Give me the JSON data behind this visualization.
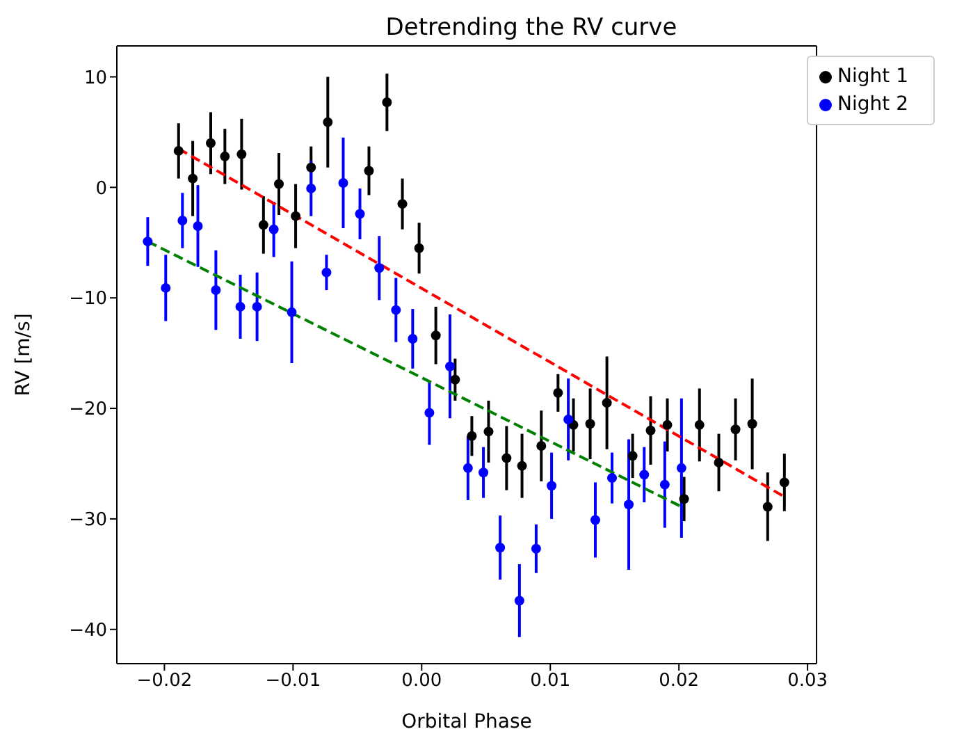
{
  "chart_data": {
    "type": "scatter",
    "title": "Detrending the RV curve",
    "xlabel": "Orbital Phase",
    "ylabel": "RV [m/s]",
    "xlim": [
      -0.0237,
      0.0307
    ],
    "ylim": [
      -43.1,
      12.8
    ],
    "xticks": [
      {
        "value": -0.02,
        "label": "−0.02"
      },
      {
        "value": -0.01,
        "label": "−0.01"
      },
      {
        "value": 0,
        "label": "0.00"
      },
      {
        "value": 0.01,
        "label": "0.01"
      },
      {
        "value": 0.02,
        "label": "0.02"
      },
      {
        "value": 0.03,
        "label": "0.03"
      }
    ],
    "yticks": [
      {
        "value": -40,
        "label": "−40"
      },
      {
        "value": -30,
        "label": "−30"
      },
      {
        "value": -20,
        "label": "−20"
      },
      {
        "value": -10,
        "label": "−10"
      },
      0,
      10
    ],
    "legend": "top right",
    "marker": "circle",
    "series": [
      {
        "name": "Night 1",
        "type": "scatter",
        "color": "#000000",
        "x": [
          -0.0189,
          -0.0178,
          -0.0164,
          -0.0153,
          -0.014,
          -0.0123,
          -0.0111,
          -0.0098,
          -0.0086,
          -0.0073,
          -0.0041,
          -0.0027,
          -0.0015,
          -0.0002,
          0.0011,
          0.0026,
          0.0039,
          0.0052,
          0.0066,
          0.0078,
          0.0093,
          0.0106,
          0.0118,
          0.0131,
          0.0144,
          0.0164,
          0.0178,
          0.0191,
          0.0204,
          0.0216,
          0.0231,
          0.0244,
          0.0257,
          0.0269,
          0.0282
        ],
        "values": [
          3.3,
          0.8,
          4.0,
          2.8,
          3.0,
          -3.4,
          0.3,
          -2.6,
          1.8,
          5.9,
          1.5,
          7.7,
          -1.5,
          -5.5,
          -13.4,
          -17.4,
          -22.5,
          -22.1,
          -24.5,
          -25.2,
          -23.4,
          -18.6,
          -21.5,
          -21.4,
          -19.5,
          -24.3,
          -22.0,
          -21.5,
          -28.2,
          -21.5,
          -24.9,
          -21.9,
          -21.4,
          -28.9,
          -26.7
        ],
        "errors": [
          2.5,
          3.4,
          2.8,
          2.5,
          3.2,
          2.6,
          2.8,
          2.9,
          1.9,
          4.1,
          2.2,
          2.6,
          2.3,
          2.3,
          2.6,
          1.9,
          1.8,
          2.8,
          2.9,
          2.9,
          3.2,
          1.7,
          2.4,
          3.2,
          4.2,
          2.0,
          3.1,
          2.4,
          2.0,
          3.3,
          2.6,
          2.8,
          4.1,
          3.1,
          2.6
        ]
      },
      {
        "name": "Night 2",
        "type": "scatter",
        "color": "#0000ff",
        "x": [
          -0.0213,
          -0.0199,
          -0.0186,
          -0.0174,
          -0.016,
          -0.0141,
          -0.0128,
          -0.0115,
          -0.0101,
          -0.0086,
          -0.0074,
          -0.0061,
          -0.0048,
          -0.0033,
          -0.002,
          -0.0007,
          0.0006,
          0.0022,
          0.0036,
          0.0048,
          0.0061,
          0.0076,
          0.0089,
          0.0101,
          0.0114,
          0.0135,
          0.0148,
          0.0161,
          0.0173,
          0.0189,
          0.0202
        ],
        "values": [
          -4.9,
          -9.1,
          -3.0,
          -3.5,
          -9.3,
          -10.8,
          -10.8,
          -3.8,
          -11.3,
          -0.1,
          -7.7,
          0.4,
          -2.4,
          -7.3,
          -11.1,
          -13.7,
          -20.4,
          -16.2,
          -25.4,
          -25.8,
          -32.6,
          -37.4,
          -32.7,
          -27.0,
          -21.0,
          -30.1,
          -26.3,
          -28.7,
          -26.0,
          -26.9,
          -25.4
        ],
        "errors": [
          2.2,
          3.0,
          2.5,
          3.7,
          3.6,
          2.9,
          3.1,
          2.5,
          4.6,
          2.5,
          1.6,
          4.1,
          2.3,
          2.9,
          2.9,
          2.7,
          2.9,
          4.7,
          2.9,
          2.3,
          2.9,
          3.3,
          2.2,
          3.0,
          3.7,
          3.4,
          2.3,
          5.9,
          2.5,
          3.9,
          6.3
        ]
      },
      {
        "type": "line",
        "color": "#ff0000",
        "line_style": "dashed",
        "marker": "none",
        "x": [
          -0.0189,
          0.0282
        ],
        "values": [
          3.5,
          -28.0
        ]
      },
      {
        "type": "line",
        "color": "#008000",
        "line_style": "dashed",
        "marker": "none",
        "x": [
          -0.0213,
          0.0202
        ],
        "values": [
          -4.9,
          -28.9
        ]
      }
    ]
  }
}
